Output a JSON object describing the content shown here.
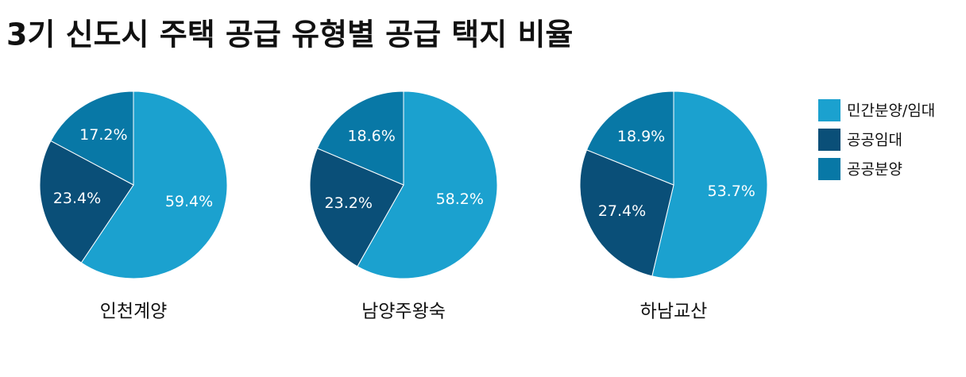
{
  "title": "3기 신도시 주택 공급 유형별 공급 택지 비율",
  "legend": {
    "labels": [
      "민간분양/임대",
      "공공임대",
      "공공분양"
    ],
    "colors": [
      "#1ba1cf",
      "#0a4f78",
      "#0878a6"
    ]
  },
  "chart_data": [
    {
      "type": "pie",
      "title": "인천계양",
      "values": [
        59.4,
        23.4,
        17.2
      ],
      "value_labels": [
        "59.4%",
        "23.4%",
        "17.2%"
      ]
    },
    {
      "type": "pie",
      "title": "남양주왕숙",
      "values": [
        58.2,
        23.2,
        18.6
      ],
      "value_labels": [
        "58.2%",
        "23.2%",
        "18.6%"
      ]
    },
    {
      "type": "pie",
      "title": "하남교산",
      "values": [
        53.7,
        27.4,
        18.9
      ],
      "value_labels": [
        "53.7%",
        "27.4%",
        "18.9%"
      ]
    }
  ]
}
